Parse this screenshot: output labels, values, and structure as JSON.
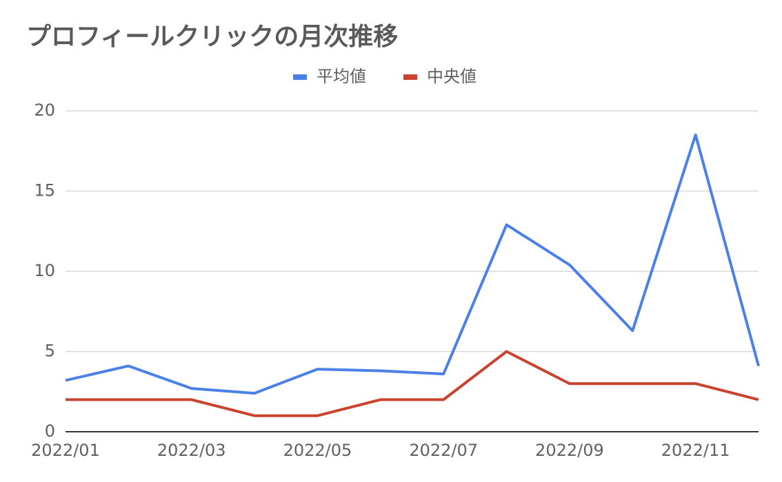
{
  "chart_data": {
    "type": "line",
    "title": "プロフィールクリックの月次推移",
    "categories": [
      "2022/01",
      null,
      "2022/03",
      null,
      "2022/05",
      null,
      "2022/07",
      null,
      "2022/09",
      null,
      "2022/11",
      null
    ],
    "series": [
      {
        "name": "平均値",
        "color": "#4a80e8",
        "values": [
          3.2,
          4.1,
          2.7,
          2.4,
          3.9,
          3.8,
          3.6,
          12.9,
          10.4,
          6.3,
          18.5,
          4.1
        ]
      },
      {
        "name": "中央値",
        "color": "#c9432f",
        "values": [
          2,
          2,
          2,
          1,
          1,
          2,
          2,
          5,
          3,
          3,
          3,
          2
        ]
      }
    ],
    "ylim": [
      0,
      20
    ],
    "yticks": [
      0,
      5,
      10,
      15,
      20
    ],
    "grid": true,
    "legend": "top"
  }
}
